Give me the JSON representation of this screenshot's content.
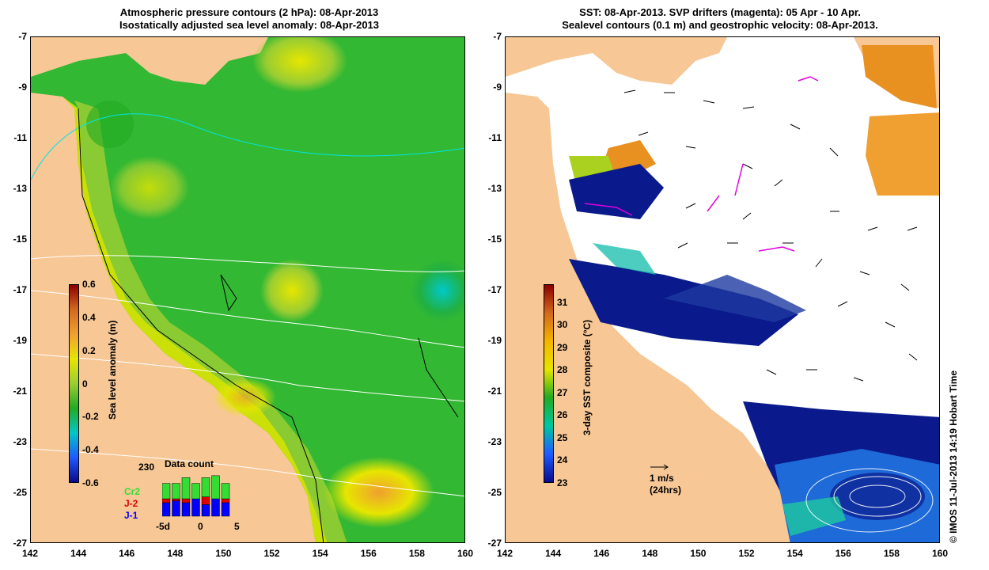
{
  "left_panel": {
    "title_line1": "Atmospheric pressure contours (2 hPa): 08-Apr-2013",
    "title_line2": "Isostatically adjusted sea level anomaly: 08-Apr-2013",
    "colorbar_label": "Sea level anomaly (m)",
    "colorbar_ticks": [
      "0.6",
      "0.4",
      "0.2",
      "0",
      "-0.2",
      "-0.4",
      "-0.6"
    ],
    "colorbar_range": [
      -0.6,
      0.6
    ],
    "colorbar_colors": [
      "#8b0000",
      "#d2691e",
      "#f0a030",
      "#e6e600",
      "#9acd32",
      "#22aa22",
      "#00c8c8",
      "#1e5aff",
      "#0a0a8c"
    ],
    "data_count": {
      "title": "Data count",
      "max_label": "230",
      "max_value": 230,
      "series": [
        {
          "name": "Cr2",
          "color": "#33dd33"
        },
        {
          "name": "J-2",
          "color": "#dd0000"
        },
        {
          "name": "J-1",
          "color": "#0000ff"
        }
      ],
      "x_ticks": [
        "-5d",
        "0",
        "5"
      ],
      "bars": [
        {
          "j1": 70,
          "j2": 20,
          "cr2": 80
        },
        {
          "j1": 80,
          "j2": 10,
          "cr2": 80
        },
        {
          "j1": 70,
          "j2": 20,
          "cr2": 110
        },
        {
          "j1": 90,
          "j2": 0,
          "cr2": 80
        },
        {
          "j1": 60,
          "j2": 40,
          "cr2": 100
        },
        {
          "j1": 90,
          "j2": 0,
          "cr2": 120
        },
        {
          "j1": 70,
          "j2": 20,
          "cr2": 80
        }
      ]
    }
  },
  "right_panel": {
    "title_line1": "SST: 08-Apr-2013. SVP drifters (magenta): 05 Apr - 10 Apr.",
    "title_line2": "Sealevel contours (0.1 m) and geostrophic velocity: 08-Apr-2013.",
    "colorbar_label": "3-day SST composite (°C)",
    "colorbar_ticks": [
      "31",
      "30",
      "29",
      "28",
      "27",
      "26",
      "25",
      "24",
      "23"
    ],
    "colorbar_range": [
      23,
      31.8
    ],
    "colorbar_colors": [
      "#8b0000",
      "#d2691e",
      "#f5b400",
      "#e6e600",
      "#22aa22",
      "#00c8a0",
      "#1e5aff",
      "#0a0a8c"
    ],
    "scale_arrow_label1": "1 m/s",
    "scale_arrow_label2": "(24hrs)"
  },
  "axes": {
    "x_ticks": [
      "142",
      "144",
      "146",
      "148",
      "150",
      "152",
      "154",
      "156",
      "158",
      "160"
    ],
    "y_ticks": [
      "-7",
      "-9",
      "-11",
      "-13",
      "-15",
      "-17",
      "-19",
      "-21",
      "-23",
      "-25",
      "-27"
    ],
    "lon_range": [
      142,
      160
    ],
    "lat_range": [
      -7,
      -27
    ]
  },
  "colors": {
    "land": "#f7c796",
    "ocean_white": "#ffffff",
    "drifter": "#e000e0"
  },
  "credit": "© IMOS 11-Jul-2013 14:19 Hobart Time"
}
